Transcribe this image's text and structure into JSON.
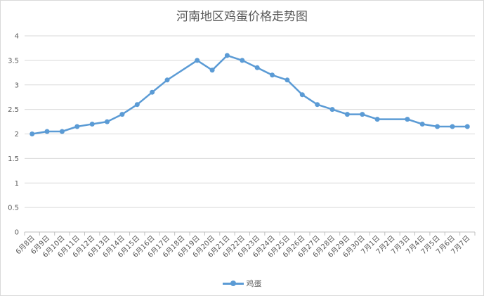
{
  "chart_data": {
    "type": "line",
    "title": "河南地区鸡蛋价格走势图",
    "categories": [
      "6月8日",
      "6月9日",
      "6月10日",
      "6月11日",
      "6月12日",
      "6月13日",
      "6月14日",
      "6月15日",
      "6月16日",
      "6月17日",
      "6月18日",
      "6月19日",
      "6月20日",
      "6月21日",
      "6月22日",
      "6月23日",
      "6月24日",
      "6月25日",
      "6月26日",
      "6月27日",
      "6月28日",
      "6月29日",
      "6月30日",
      "7月1日",
      "7月2日",
      "7月3日",
      "7月4日",
      "7月5日",
      "7月6日",
      "7月7日"
    ],
    "series": [
      {
        "name": "鸡蛋",
        "color": "#5b9bd5",
        "values": [
          2.0,
          2.05,
          2.05,
          2.15,
          2.2,
          2.25,
          2.4,
          2.6,
          2.85,
          3.1,
          null,
          3.5,
          3.3,
          3.6,
          3.5,
          3.35,
          3.2,
          3.1,
          2.8,
          2.6,
          2.5,
          2.4,
          2.4,
          2.3,
          null,
          2.3,
          2.2,
          2.15,
          2.15,
          2.15
        ]
      }
    ],
    "ylim": [
      0,
      4
    ],
    "yticks": [
      "0",
      "0.5",
      "1",
      "1.5",
      "2",
      "2.5",
      "3",
      "3.5",
      "4"
    ],
    "grid": true,
    "legend": "bottom"
  }
}
